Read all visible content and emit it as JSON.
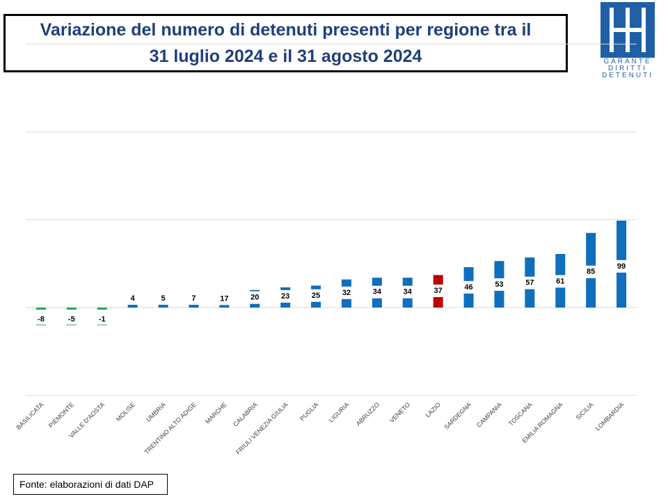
{
  "header": {
    "title_line1": "Variazione del numero di detenuti presenti per regione tra il",
    "title_line2": "31 luglio 2024 e il 31 agosto 2024"
  },
  "logo": {
    "words": [
      "GARANTE",
      "DIRITTI",
      "DETENUTI"
    ],
    "color": "#1f5fa6"
  },
  "footer": {
    "source": "Fonte: elaborazioni di dati DAP"
  },
  "chart_data": {
    "type": "bar",
    "categories": [
      "BASILICATA",
      "PIEMONTE",
      "VALLE D'AOSTA",
      "MOLISE",
      "UMBRIA",
      "TRENTINO ALTO ADIGE",
      "MARCHE",
      "CALABRIA",
      "FRIULI VENEZIA GIULIA",
      "PUGLIA",
      "LIGURIA",
      "ABRUZZO",
      "VENETO",
      "LAZIO",
      "SARDEGNA",
      "CAMPANIA",
      "TOSCANA",
      "EMILIA ROMAGNA",
      "SICILIA",
      "LOMBARDIA"
    ],
    "values": [
      -8,
      -5,
      -1,
      4,
      5,
      7,
      17,
      20,
      23,
      25,
      32,
      34,
      34,
      37,
      46,
      53,
      57,
      61,
      85,
      99
    ],
    "data_labels": [
      "-8",
      "-5",
      "-1",
      "4",
      "5",
      "7",
      "17",
      "20",
      "23",
      "25",
      "32",
      "34",
      "34",
      "37",
      "46",
      "53",
      "57",
      "61",
      "85",
      "99"
    ],
    "ylim": [
      -100,
      250
    ],
    "grid": true,
    "legend": "none",
    "colors": {
      "positive": "#0f6ebe",
      "negative": "#21a958",
      "highlight": "#c00000",
      "highlight_category": "LAZIO",
      "grid": "#d9d9d9"
    },
    "title": "Variazione del numero di detenuti presenti per regione tra il 31 luglio 2024 e il 31 agosto 2024",
    "xlabel": "",
    "ylabel": ""
  }
}
